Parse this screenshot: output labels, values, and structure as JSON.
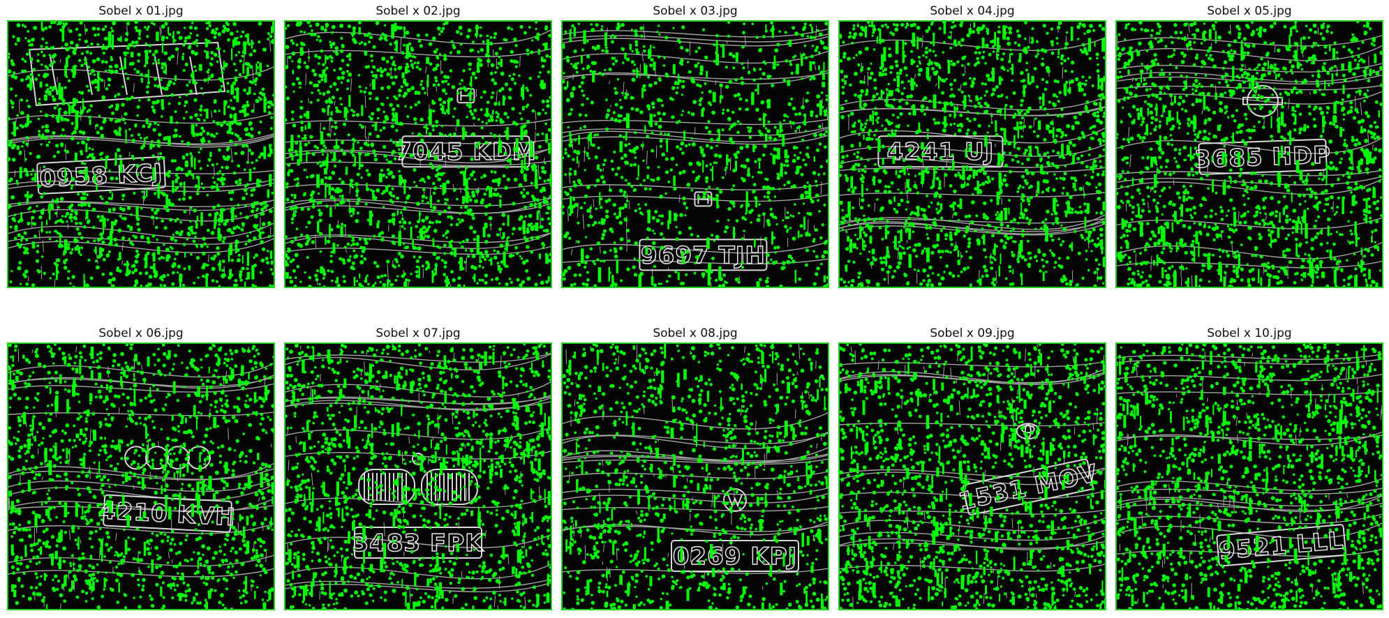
{
  "colors": {
    "keypoint": "#00ff00",
    "border": "#1fd01f",
    "edge": "#d9d9d9",
    "background": "#050505"
  },
  "panels": [
    {
      "title": "Sobel x 01.jpg",
      "plate": "0958 KCJ",
      "logo": "grille",
      "plate_pos": [
        0.35,
        0.58
      ],
      "angle": -3,
      "density": 1.0
    },
    {
      "title": "Sobel x 02.jpg",
      "plate": "7045 KDM",
      "logo": "honda",
      "plate_pos": [
        0.68,
        0.49
      ],
      "angle": 0,
      "density": 0.95
    },
    {
      "title": "Sobel x 03.jpg",
      "plate": "9697 TJH",
      "logo": "honda",
      "plate_pos": [
        0.53,
        0.88
      ],
      "angle": 0,
      "density": 0.7
    },
    {
      "title": "Sobel x 04.jpg",
      "plate": "4241 UJ",
      "logo": "none",
      "plate_pos": [
        0.38,
        0.49
      ],
      "angle": 0,
      "density": 1.0
    },
    {
      "title": "Sobel x 05.jpg",
      "plate": "3685 HDP",
      "logo": "nissan",
      "plate_pos": [
        0.55,
        0.51
      ],
      "angle": -2,
      "density": 1.0
    },
    {
      "title": "Sobel x 06.jpg",
      "plate": "4210 KVH",
      "logo": "audi",
      "plate_pos": [
        0.6,
        0.64
      ],
      "angle": 3,
      "density": 0.9
    },
    {
      "title": "Sobel x 07.jpg",
      "plate": "3483 FPK",
      "logo": "bmw",
      "plate_pos": [
        0.5,
        0.75
      ],
      "angle": 0,
      "density": 0.95
    },
    {
      "title": "Sobel x 08.jpg",
      "plate": "0269 KPJ",
      "logo": "vw",
      "plate_pos": [
        0.65,
        0.8
      ],
      "angle": 0,
      "density": 0.75
    },
    {
      "title": "Sobel x 09.jpg",
      "plate": "1531 MOV",
      "logo": "toyota",
      "plate_pos": [
        0.71,
        0.54
      ],
      "angle": -12,
      "density": 1.0
    },
    {
      "title": "Sobel x 10.jpg",
      "plate": "9521 LLL",
      "logo": "none",
      "plate_pos": [
        0.62,
        0.76
      ],
      "angle": -5,
      "density": 1.0
    }
  ]
}
